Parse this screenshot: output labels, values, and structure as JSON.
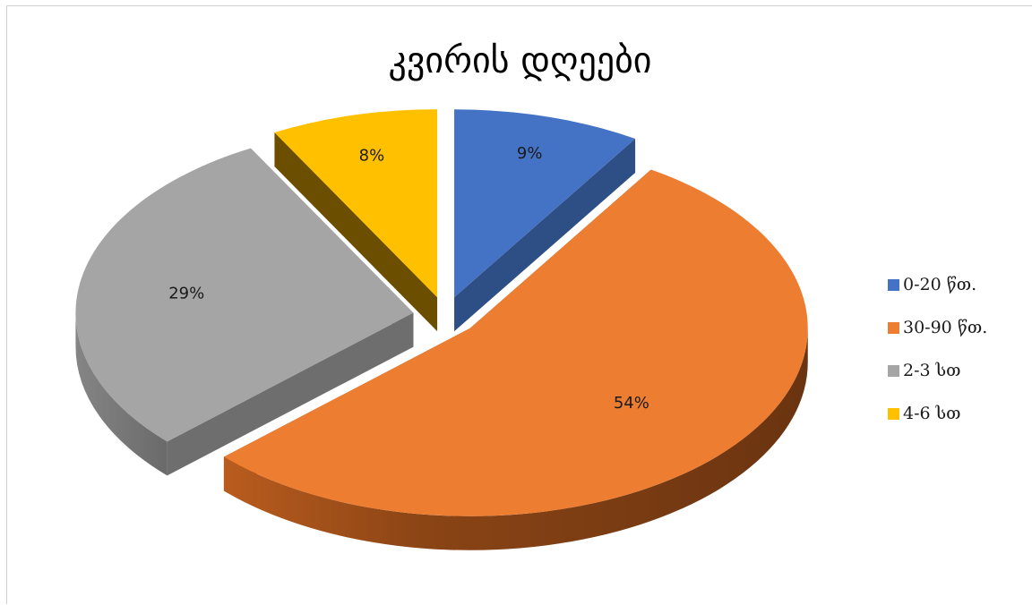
{
  "chart_data": {
    "type": "pie",
    "title": "კვირის დღეები",
    "categories": [
      "0-20 წთ.",
      "30-90 წთ.",
      "2-3 სთ",
      "4-6 სთ"
    ],
    "values": [
      9,
      54,
      29,
      8
    ],
    "data_labels": [
      "9%",
      "54%",
      "29%",
      "8%"
    ],
    "colors": [
      "#4472C4",
      "#ED7D31",
      "#A5A5A5",
      "#FFC000"
    ],
    "style": "3d-exploded",
    "legend_position": "right"
  }
}
